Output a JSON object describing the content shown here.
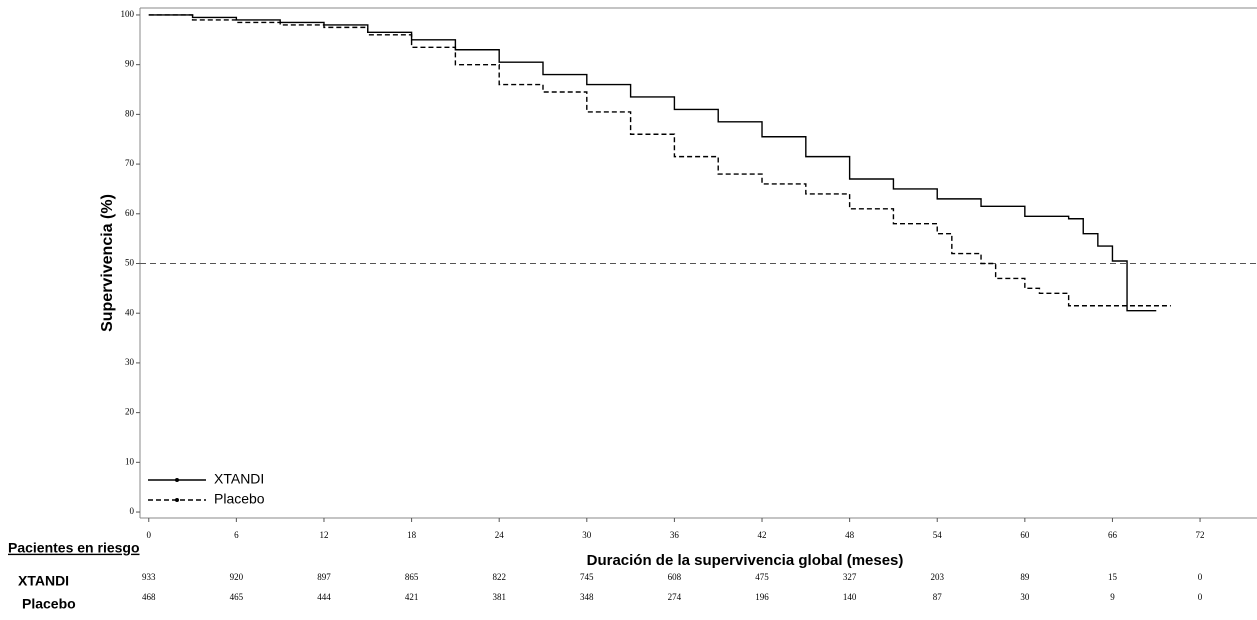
{
  "chart_data": {
    "type": "line",
    "step": true,
    "y_label": "Supervivencia (%)",
    "x_label": "Duración de la supervivencia global (meses)",
    "xlim": [
      -0.6,
      75.9
    ],
    "ylim": [
      -1.2,
      101.4
    ],
    "xticks": [
      0,
      6,
      12,
      18,
      24,
      30,
      36,
      42,
      48,
      54,
      60,
      66,
      72
    ],
    "yticks": [
      0,
      10,
      20,
      30,
      40,
      50,
      60,
      70,
      80,
      90,
      100
    ],
    "reference_line": 50,
    "legend": "lower left",
    "series": [
      {
        "name": "XTANDI",
        "color": "#000000",
        "dash": false,
        "x": [
          0,
          3,
          6,
          9,
          12,
          15,
          18,
          21,
          24,
          27,
          30,
          33,
          36,
          39,
          42,
          45,
          48,
          51,
          54,
          57,
          60,
          63,
          64,
          65,
          66,
          67,
          69
        ],
        "values": [
          100,
          99.5,
          99,
          98.5,
          98,
          96.5,
          95,
          93,
          90.5,
          88,
          86,
          83.5,
          81,
          78.5,
          75.5,
          71.5,
          67,
          65,
          63,
          61.5,
          59.5,
          59,
          56,
          53.5,
          50.5,
          40.5,
          40.5
        ]
      },
      {
        "name": "Placebo",
        "color": "#000000",
        "dash": true,
        "x": [
          0,
          3,
          6,
          9,
          12,
          15,
          18,
          21,
          24,
          27,
          30,
          33,
          36,
          39,
          42,
          45,
          48,
          51,
          54,
          55,
          57,
          58,
          60,
          61,
          63,
          70
        ],
        "values": [
          100,
          99,
          98.5,
          98,
          97.5,
          96,
          93.5,
          90,
          86,
          84.5,
          80.5,
          76,
          71.5,
          68,
          66,
          64,
          61,
          58,
          56,
          52,
          50,
          47,
          45,
          44,
          41.5,
          41.5
        ]
      }
    ],
    "risk_table": {
      "title": "Pacientes en riesgo",
      "rows": [
        {
          "name": "XTANDI",
          "values": [
            933,
            920,
            897,
            865,
            822,
            745,
            608,
            475,
            327,
            203,
            89,
            15,
            0
          ]
        },
        {
          "name": "Placebo",
          "values": [
            468,
            465,
            444,
            421,
            381,
            348,
            274,
            196,
            140,
            87,
            30,
            9,
            0
          ]
        }
      ]
    }
  }
}
